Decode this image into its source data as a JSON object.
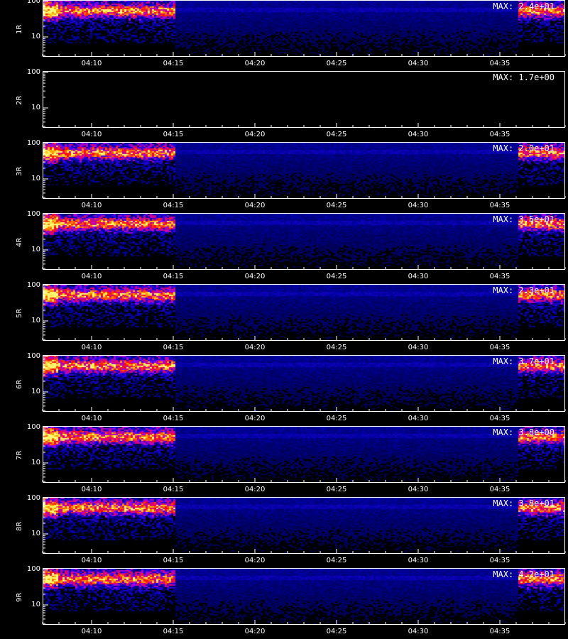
{
  "chart_data": [
    {
      "type": "heatmap",
      "ylabel": "1R",
      "max_label": "MAX: 2.4e+01",
      "data_present": true
    },
    {
      "type": "heatmap",
      "ylabel": "2R",
      "max_label": "MAX: 1.7e+00",
      "data_present": false
    },
    {
      "type": "heatmap",
      "ylabel": "3R",
      "max_label": "MAX: 2.0e+01",
      "data_present": true
    },
    {
      "type": "heatmap",
      "ylabel": "4R",
      "max_label": "MAX: 3.5e+01",
      "data_present": true
    },
    {
      "type": "heatmap",
      "ylabel": "5R",
      "max_label": "MAX: 2.3e+01",
      "data_present": true
    },
    {
      "type": "heatmap",
      "ylabel": "6R",
      "max_label": "MAX: 3.7e+01",
      "data_present": true
    },
    {
      "type": "heatmap",
      "ylabel": "7R",
      "max_label": "MAX: 3.8e+00",
      "data_present": true
    },
    {
      "type": "heatmap",
      "ylabel": "8R",
      "max_label": "MAX: 3.8e+01",
      "data_present": true
    },
    {
      "type": "heatmap",
      "ylabel": "9R",
      "max_label": "MAX: 4.2e+01",
      "data_present": true
    }
  ],
  "axes": {
    "y_ticks": [
      "100",
      "10"
    ],
    "y_scale": "log",
    "x_ticks": [
      "04:10",
      "04:15",
      "04:20",
      "04:25",
      "04:30",
      "04:35"
    ],
    "x_range_minutes": [
      "04:07",
      "04:39"
    ],
    "active_intervals": [
      [
        "04:07",
        "04:15"
      ],
      [
        "04:36",
        "04:39"
      ]
    ]
  },
  "xlabel": "",
  "colors": {
    "background": "#000000",
    "axis": "#ffffff",
    "low": "#000080",
    "mid": "#0000ff",
    "high": "#ff4000",
    "peak": "#ffff00"
  }
}
